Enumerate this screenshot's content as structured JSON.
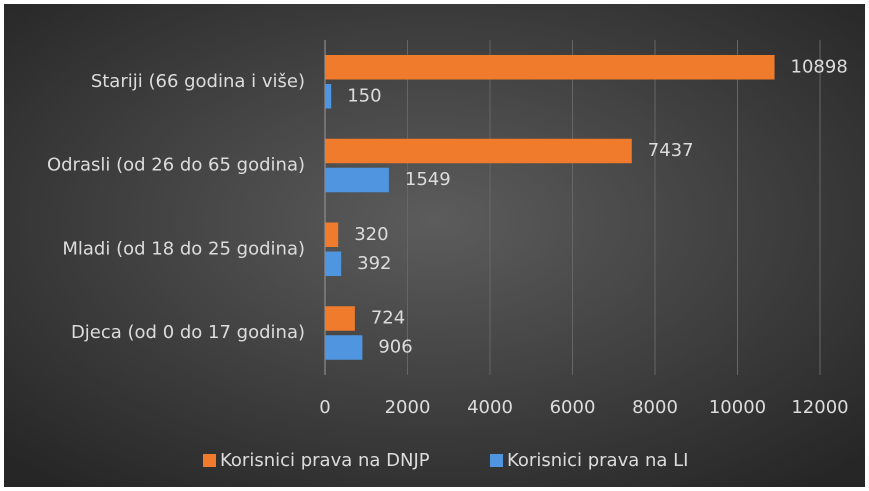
{
  "chart_data": {
    "type": "bar",
    "orientation": "horizontal",
    "categories": [
      "Stariji (66 godina i više)",
      "Odrasli (od 26 do 65 godina)",
      "Mladi (od 18 do 25 godina)",
      "Djeca (od 0 do 17 godina)"
    ],
    "series": [
      {
        "name": "Korisnici prava na DNJP",
        "color": "#f07b2c",
        "values": [
          10898,
          7437,
          320,
          724
        ]
      },
      {
        "name": "Korisnici prava na LI",
        "color": "#4f95e0",
        "values": [
          150,
          1549,
          392,
          906
        ]
      }
    ],
    "xlim": [
      0,
      12000
    ],
    "xticks": [
      0,
      2000,
      4000,
      6000,
      8000,
      10000,
      12000
    ],
    "grid": true,
    "legend": "bottom"
  }
}
